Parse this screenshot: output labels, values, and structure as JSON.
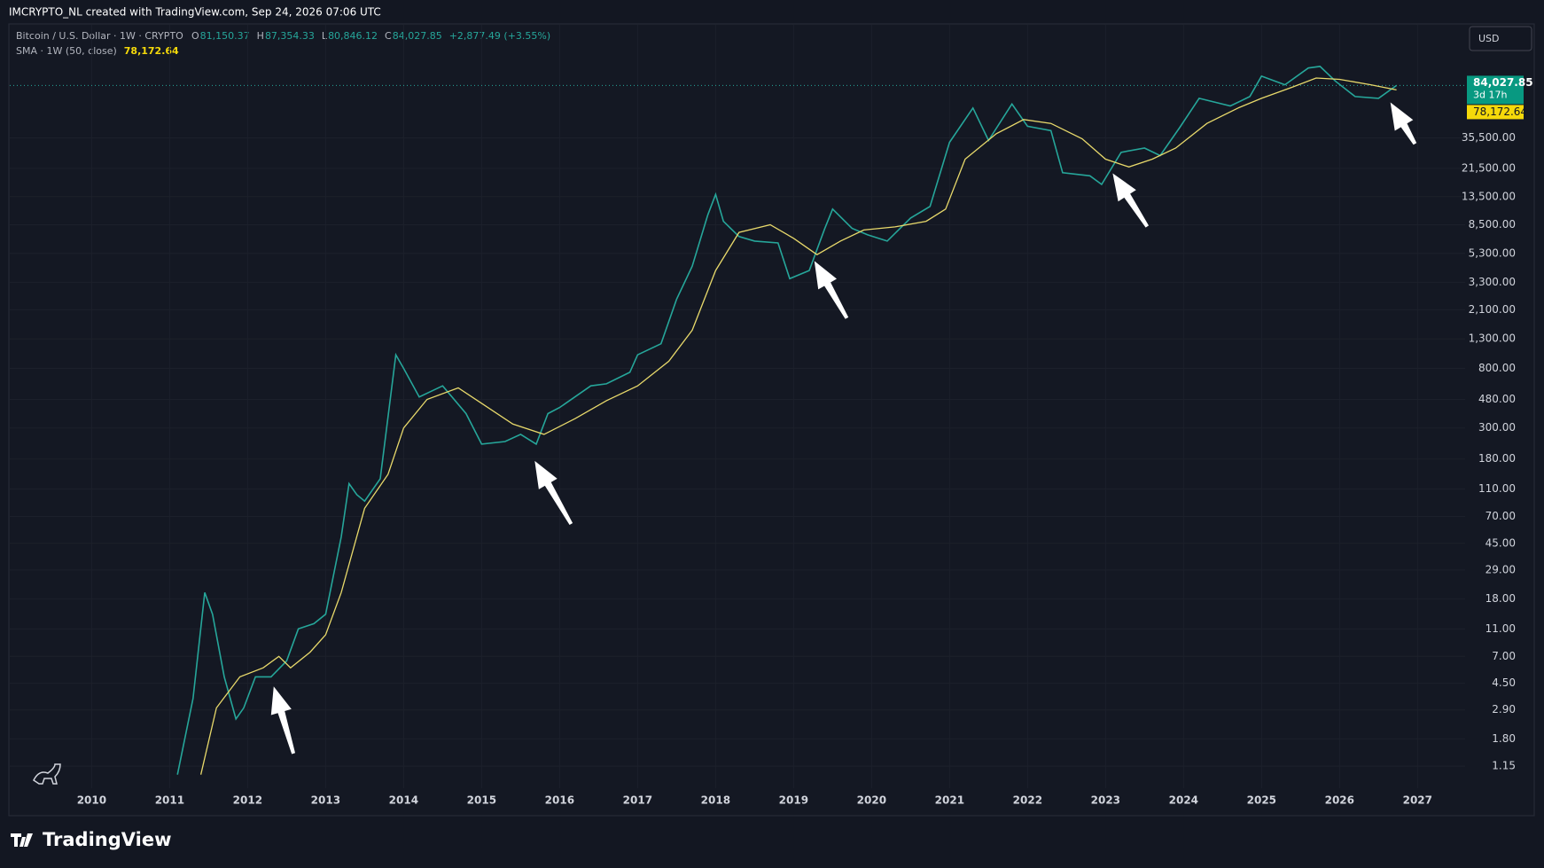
{
  "header": {
    "credit": "IMCRYPTO_NL created with TradingView.com, Sep 24, 2026 07:06 UTC",
    "currency_button": "USD",
    "brand": "TradingView"
  },
  "legend": {
    "ohlc": [
      {
        "key": "O",
        "text": "81,150.37"
      },
      {
        "key": "H",
        "text": "87,354.33"
      },
      {
        "key": "L",
        "text": "80,846.12"
      },
      {
        "key": "C",
        "text": "84,027.85"
      }
    ],
    "change": "+2,877.49 (+3.55%)"
  },
  "chart_data": {
    "type": "line",
    "log_scale": true,
    "grid": true,
    "xlim": [
      2008.95,
      2027.61
    ],
    "ylim": [
      0.8,
      228000
    ],
    "xticks": [
      2010,
      2011,
      2012,
      2013,
      2014,
      2015,
      2016,
      2017,
      2018,
      2019,
      2020,
      2021,
      2022,
      2023,
      2024,
      2025,
      2026,
      2027
    ],
    "yticks": [
      1.15,
      {
        "value": 1.8,
        "label": "1.80"
      },
      {
        "value": 2.9,
        "label": "2.90"
      },
      {
        "value": 4.5,
        "label": "4.50"
      },
      {
        "value": 7,
        "label": "7.00"
      },
      {
        "value": 11,
        "label": "11.00"
      },
      {
        "value": 18,
        "label": "18.00"
      },
      {
        "value": 29,
        "label": "29.00"
      },
      {
        "value": 45,
        "label": "45.00"
      },
      {
        "value": 70,
        "label": "70.00"
      },
      {
        "value": 110,
        "label": "110.00"
      },
      {
        "value": 180,
        "label": "180.00"
      },
      {
        "value": 300,
        "label": "300.00"
      },
      {
        "value": 480,
        "label": "480.00"
      },
      {
        "value": 800,
        "label": "800.00"
      },
      {
        "value": 1300,
        "label": "1,300.00"
      },
      {
        "value": 2100,
        "label": "2,100.00"
      },
      {
        "value": 3300,
        "label": "3,300.00"
      },
      {
        "value": 5300,
        "label": "5,300.00"
      },
      {
        "value": 8500,
        "label": "8,500.00"
      },
      {
        "value": 13500,
        "label": "13,500.00"
      },
      {
        "value": 21500,
        "label": "21,500.00"
      },
      {
        "value": 35500,
        "label": "35,500.00"
      }
    ],
    "series": [
      {
        "name": "Bitcoin / U.S. Dollar · 1W · CRYPTO",
        "color": "#26a69a",
        "x": [
          2011.1,
          2011.3,
          2011.45,
          2011.55,
          2011.7,
          2011.85,
          2011.95,
          2012.1,
          2012.3,
          2012.5,
          2012.65,
          2012.85,
          2013.0,
          2013.2,
          2013.3,
          2013.4,
          2013.5,
          2013.7,
          2013.9,
          2014.0,
          2014.2,
          2014.5,
          2014.8,
          2015.0,
          2015.3,
          2015.5,
          2015.7,
          2015.85,
          2016.0,
          2016.4,
          2016.6,
          2016.9,
          2017.0,
          2017.3,
          2017.5,
          2017.7,
          2017.9,
          2018.0,
          2018.1,
          2018.3,
          2018.5,
          2018.8,
          2018.95,
          2019.2,
          2019.4,
          2019.5,
          2019.75,
          2019.95,
          2020.2,
          2020.5,
          2020.75,
          2021.0,
          2021.3,
          2021.5,
          2021.8,
          2022.0,
          2022.3,
          2022.45,
          2022.8,
          2022.95,
          2023.2,
          2023.5,
          2023.7,
          2023.95,
          2024.2,
          2024.6,
          2024.85,
          2025.0,
          2025.3,
          2025.6,
          2025.75,
          2025.95,
          2026.2,
          2026.5,
          2026.73
        ],
        "values": [
          1.0,
          3.5,
          20,
          14,
          5,
          2.5,
          3,
          5,
          5,
          6.5,
          11,
          12,
          14,
          50,
          120,
          100,
          90,
          130,
          1000,
          800,
          500,
          600,
          380,
          230,
          240,
          270,
          230,
          380,
          420,
          600,
          620,
          750,
          1000,
          1200,
          2500,
          4300,
          10000,
          14000,
          9000,
          7000,
          6500,
          6300,
          3500,
          4000,
          8000,
          11000,
          8000,
          7200,
          6500,
          9500,
          11500,
          33000,
          58000,
          34000,
          62000,
          43000,
          40000,
          20000,
          19000,
          16500,
          28000,
          30000,
          26500,
          42000,
          68000,
          60000,
          70000,
          98000,
          85000,
          112000,
          115000,
          90000,
          70000,
          68000,
          84027.85
        ]
      },
      {
        "name": "SMA · 1W (50, close)",
        "color": "#e8d96b",
        "x": [
          2011.4,
          2011.6,
          2011.9,
          2012.2,
          2012.4,
          2012.55,
          2012.8,
          2013.0,
          2013.2,
          2013.5,
          2013.8,
          2014.0,
          2014.3,
          2014.7,
          2015.0,
          2015.4,
          2015.8,
          2016.2,
          2016.6,
          2017.0,
          2017.4,
          2017.7,
          2018.0,
          2018.3,
          2018.7,
          2019.0,
          2019.3,
          2019.6,
          2019.9,
          2020.3,
          2020.7,
          2020.95,
          2021.2,
          2021.6,
          2021.95,
          2022.3,
          2022.7,
          2023.0,
          2023.3,
          2023.6,
          2023.9,
          2024.3,
          2024.7,
          2025.0,
          2025.4,
          2025.7,
          2026.0,
          2026.4,
          2026.73
        ],
        "values": [
          1.0,
          3,
          5,
          5.8,
          7,
          5.8,
          7.5,
          10,
          20,
          80,
          140,
          300,
          480,
          580,
          450,
          320,
          270,
          350,
          470,
          600,
          900,
          1500,
          4000,
          7500,
          8500,
          6800,
          5200,
          6500,
          7800,
          8200,
          9000,
          11000,
          25000,
          38000,
          48000,
          45000,
          35000,
          25000,
          22000,
          25000,
          30000,
          45000,
          58000,
          68000,
          82000,
          95000,
          93000,
          85000,
          78172.64
        ]
      }
    ],
    "last_price": {
      "value": 84027.85,
      "label": "84,027.85",
      "countdown": "3d 17h"
    },
    "last_sma": {
      "value": 78172.64,
      "label": "78,172.64"
    }
  }
}
